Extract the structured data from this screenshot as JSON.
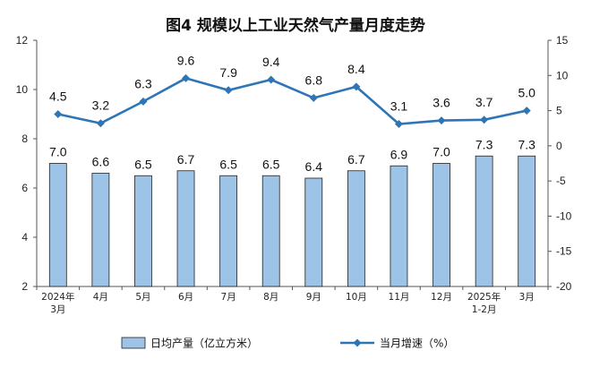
{
  "chart_data": {
    "type": "bar+line",
    "title": "图4  规模以上工业天然气产量月度走势",
    "categories": [
      [
        "2024年",
        "3月"
      ],
      [
        "4月"
      ],
      [
        "5月"
      ],
      [
        "6月"
      ],
      [
        "7月"
      ],
      [
        "8月"
      ],
      [
        "9月"
      ],
      [
        "10月"
      ],
      [
        "11月"
      ],
      [
        "12月"
      ],
      [
        "2025年",
        "1-2月"
      ],
      [
        "3月"
      ]
    ],
    "series": [
      {
        "name": "日均产量（亿立方米）",
        "type": "bar",
        "axis": "left",
        "color": "#9dc3e6",
        "values": [
          7.0,
          6.6,
          6.5,
          6.7,
          6.5,
          6.5,
          6.4,
          6.7,
          6.9,
          7.0,
          7.3,
          7.3
        ],
        "labels": [
          "7.0",
          "6.6",
          "6.5",
          "6.7",
          "6.5",
          "6.5",
          "6.4",
          "6.7",
          "6.9",
          "7.0",
          "7.3",
          "7.3"
        ]
      },
      {
        "name": "当月增速（%）",
        "type": "line",
        "axis": "right",
        "color": "#2e75b6",
        "values": [
          4.5,
          3.2,
          6.3,
          9.6,
          7.9,
          9.4,
          6.8,
          8.4,
          3.1,
          3.6,
          3.7,
          5.0
        ],
        "labels": [
          "4.5",
          "3.2",
          "6.3",
          "9.6",
          "7.9",
          "9.4",
          "6.8",
          "8.4",
          "3.1",
          "3.6",
          "3.7",
          "5.0"
        ]
      }
    ],
    "y_left": {
      "min": 2,
      "max": 12,
      "ticks": [
        "2",
        "4",
        "6",
        "8",
        "10",
        "12"
      ]
    },
    "y_right": {
      "min": -20,
      "max": 15,
      "ticks": [
        "-20",
        "-15",
        "-10",
        "-5",
        "0",
        "5",
        "10",
        "15"
      ]
    },
    "grid": false,
    "legend_position": "bottom"
  }
}
